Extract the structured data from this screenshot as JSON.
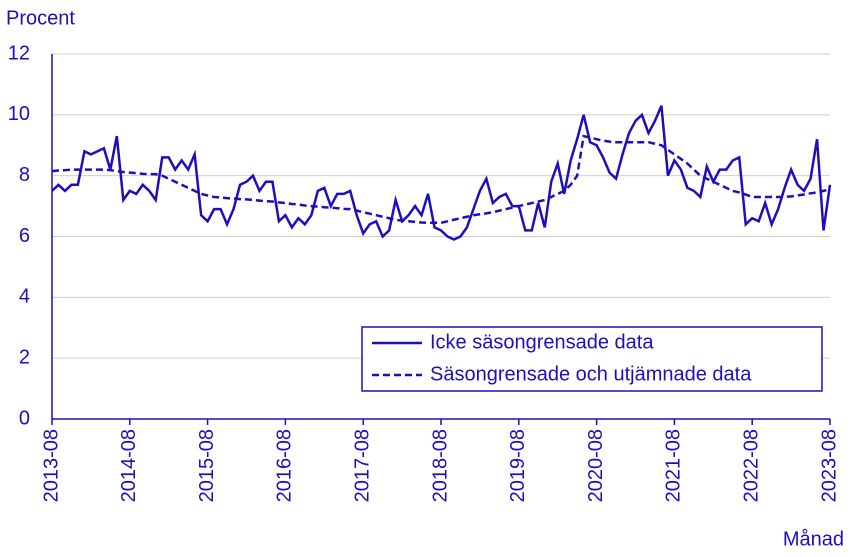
{
  "chart_data": {
    "type": "line",
    "y_label": "Procent",
    "x_label": "Månad",
    "x": [
      "2013-08",
      "2013-09",
      "2013-10",
      "2013-11",
      "2013-12",
      "2014-01",
      "2014-02",
      "2014-03",
      "2014-04",
      "2014-05",
      "2014-06",
      "2014-07",
      "2014-08",
      "2014-09",
      "2014-10",
      "2014-11",
      "2014-12",
      "2015-01",
      "2015-02",
      "2015-03",
      "2015-04",
      "2015-05",
      "2015-06",
      "2015-07",
      "2015-08",
      "2015-09",
      "2015-10",
      "2015-11",
      "2015-12",
      "2016-01",
      "2016-02",
      "2016-03",
      "2016-04",
      "2016-05",
      "2016-06",
      "2016-07",
      "2016-08",
      "2016-09",
      "2016-10",
      "2016-11",
      "2016-12",
      "2017-01",
      "2017-02",
      "2017-03",
      "2017-04",
      "2017-05",
      "2017-06",
      "2017-07",
      "2017-08",
      "2017-09",
      "2017-10",
      "2017-11",
      "2017-12",
      "2018-01",
      "2018-02",
      "2018-03",
      "2018-04",
      "2018-05",
      "2018-06",
      "2018-07",
      "2018-08",
      "2018-09",
      "2018-10",
      "2018-11",
      "2018-12",
      "2019-01",
      "2019-02",
      "2019-03",
      "2019-04",
      "2019-05",
      "2019-06",
      "2019-07",
      "2019-08",
      "2019-09",
      "2019-10",
      "2019-11",
      "2019-12",
      "2020-01",
      "2020-02",
      "2020-03",
      "2020-04",
      "2020-05",
      "2020-06",
      "2020-07",
      "2020-08",
      "2020-09",
      "2020-10",
      "2020-11",
      "2020-12",
      "2021-01",
      "2021-02",
      "2021-03",
      "2021-04",
      "2021-05",
      "2021-06",
      "2021-07",
      "2021-08",
      "2021-09",
      "2021-10",
      "2021-11",
      "2021-12",
      "2022-01",
      "2022-02",
      "2022-03",
      "2022-04",
      "2022-05",
      "2022-06",
      "2022-07",
      "2022-08",
      "2022-09",
      "2022-10",
      "2022-11",
      "2022-12",
      "2023-01",
      "2023-02",
      "2023-03",
      "2023-04",
      "2023-05",
      "2023-06",
      "2023-07",
      "2023-08"
    ],
    "series": [
      {
        "name": "Icke säsongrensade data",
        "color": "#1e0fbe",
        "line_style": "solid",
        "values": [
          7.5,
          7.7,
          7.5,
          7.7,
          7.7,
          8.8,
          8.7,
          8.8,
          8.9,
          8.2,
          9.3,
          7.2,
          7.5,
          7.4,
          7.7,
          7.5,
          7.2,
          8.6,
          8.6,
          8.2,
          8.5,
          8.2,
          8.7,
          6.7,
          6.5,
          6.9,
          6.9,
          6.4,
          6.9,
          7.7,
          7.8,
          8.0,
          7.5,
          7.8,
          7.8,
          6.5,
          6.7,
          6.3,
          6.6,
          6.4,
          6.7,
          7.5,
          7.6,
          7.0,
          7.4,
          7.4,
          7.5,
          6.7,
          6.1,
          6.4,
          6.5,
          6.0,
          6.2,
          7.2,
          6.5,
          6.7,
          7.0,
          6.7,
          7.4,
          6.3,
          6.2,
          6.0,
          5.9,
          6.0,
          6.3,
          6.9,
          7.5,
          7.9,
          7.1,
          7.3,
          7.4,
          7.0,
          7.0,
          6.2,
          6.2,
          7.1,
          6.3,
          7.8,
          8.4,
          7.4,
          8.5,
          9.2,
          10.0,
          9.1,
          9.0,
          8.6,
          8.1,
          7.9,
          8.7,
          9.4,
          9.8,
          10.0,
          9.4,
          9.8,
          10.3,
          8.0,
          8.5,
          8.2,
          7.6,
          7.5,
          7.3,
          8.3,
          7.8,
          8.2,
          8.2,
          8.5,
          8.6,
          6.4,
          6.6,
          6.5,
          7.1,
          6.4,
          6.9,
          7.6,
          8.2,
          7.7,
          7.5,
          7.9,
          9.2,
          6.2,
          7.7
        ]
      },
      {
        "name": "Säsongrensade och utjämnade data",
        "color": "#1e0fbe",
        "line_style": "dashed",
        "values": [
          8.15,
          8.17,
          8.18,
          8.2,
          8.2,
          8.2,
          8.2,
          8.2,
          8.2,
          8.18,
          8.15,
          8.12,
          8.1,
          8.08,
          8.06,
          8.05,
          8.05,
          8.0,
          7.9,
          7.8,
          7.7,
          7.6,
          7.5,
          7.4,
          7.35,
          7.3,
          7.28,
          7.26,
          7.25,
          7.23,
          7.22,
          7.2,
          7.18,
          7.16,
          7.15,
          7.12,
          7.1,
          7.07,
          7.05,
          7.02,
          7.0,
          6.98,
          6.96,
          6.95,
          6.93,
          6.91,
          6.9,
          6.85,
          6.8,
          6.75,
          6.7,
          6.65,
          6.6,
          6.55,
          6.52,
          6.5,
          6.48,
          6.46,
          6.45,
          6.45,
          6.45,
          6.5,
          6.55,
          6.6,
          6.65,
          6.7,
          6.73,
          6.76,
          6.8,
          6.85,
          6.9,
          6.95,
          7.0,
          7.05,
          7.1,
          7.15,
          7.2,
          7.3,
          7.4,
          7.5,
          7.7,
          8.0,
          9.3,
          9.25,
          9.2,
          9.15,
          9.12,
          9.1,
          9.1,
          9.1,
          9.1,
          9.1,
          9.1,
          9.05,
          9.0,
          8.85,
          8.7,
          8.55,
          8.4,
          8.2,
          8.0,
          7.9,
          7.8,
          7.7,
          7.6,
          7.5,
          7.45,
          7.38,
          7.3,
          7.3,
          7.3,
          7.3,
          7.3,
          7.3,
          7.32,
          7.35,
          7.38,
          7.42,
          7.45,
          7.5,
          7.55
        ]
      }
    ],
    "xticks": [
      "2013-08",
      "2014-08",
      "2015-08",
      "2016-08",
      "2017-08",
      "2018-08",
      "2019-08",
      "2020-08",
      "2021-08",
      "2022-08",
      "2023-08"
    ],
    "ylim": [
      0,
      12
    ],
    "yticks": [
      0,
      2,
      4,
      6,
      8,
      10,
      12
    ],
    "grid": true,
    "legend": "lower right"
  }
}
